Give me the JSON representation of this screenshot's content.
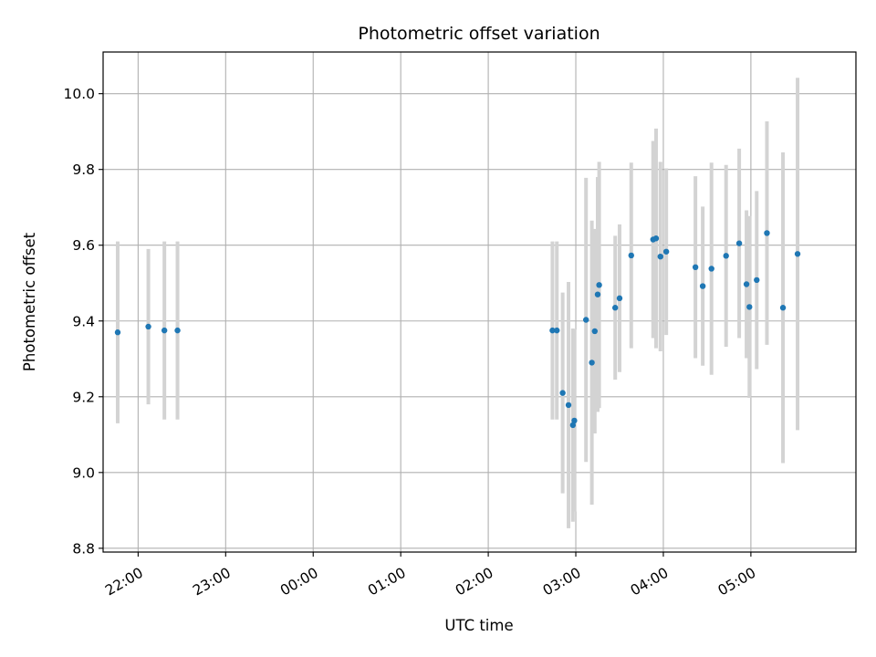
{
  "chart_data": {
    "type": "scatter",
    "title": "Photometric offset variation",
    "xlabel": "UTC time",
    "ylabel": "Photometric offset",
    "x_unit": "UTC",
    "x_tick_labels": [
      "22:00",
      "23:00",
      "00:00",
      "01:00",
      "02:00",
      "03:00",
      "04:00",
      "05:00"
    ],
    "x_tick_times": [
      "22:00",
      "23:00",
      "00:00",
      "01:00",
      "02:00",
      "03:00",
      "04:00",
      "05:00"
    ],
    "x_range": [
      "21:36",
      "06:12"
    ],
    "y_tick_labels": [
      "8.8",
      "9.0",
      "9.2",
      "9.4",
      "9.6",
      "9.8",
      "10.0"
    ],
    "y_ticks": [
      8.8,
      9.0,
      9.2,
      9.4,
      9.6,
      9.8,
      10.0
    ],
    "ylim": [
      8.79,
      10.11
    ],
    "grid": true,
    "legend": "none",
    "point_color": "#1f77b4",
    "errorbar_color": "#d3d3d3",
    "points": [
      {
        "time": "21:46",
        "y": 9.37,
        "err": 0.24
      },
      {
        "time": "22:07",
        "y": 9.385,
        "err": 0.205
      },
      {
        "time": "22:18",
        "y": 9.375,
        "err": 0.235
      },
      {
        "time": "22:27",
        "y": 9.375,
        "err": 0.235
      },
      {
        "time": "02:44",
        "y": 9.375,
        "err": 0.235
      },
      {
        "time": "02:47",
        "y": 9.375,
        "err": 0.235
      },
      {
        "time": "02:51",
        "y": 9.21,
        "err": 0.265
      },
      {
        "time": "02:55",
        "y": 9.178,
        "err": 0.325
      },
      {
        "time": "02:58",
        "y": 9.125,
        "err": 0.255
      },
      {
        "time": "02:59",
        "y": 9.137,
        "err": 0.24
      },
      {
        "time": "03:07",
        "y": 9.403,
        "err": 0.375
      },
      {
        "time": "03:11",
        "y": 9.29,
        "err": 0.375
      },
      {
        "time": "03:13",
        "y": 9.373,
        "err": 0.27
      },
      {
        "time": "03:15",
        "y": 9.47,
        "err": 0.31
      },
      {
        "time": "03:16",
        "y": 9.495,
        "err": 0.325
      },
      {
        "time": "03:27",
        "y": 9.435,
        "err": 0.19
      },
      {
        "time": "03:30",
        "y": 9.46,
        "err": 0.195
      },
      {
        "time": "03:38",
        "y": 9.573,
        "err": 0.245
      },
      {
        "time": "03:53",
        "y": 9.615,
        "err": 0.26
      },
      {
        "time": "03:55",
        "y": 9.618,
        "err": 0.29
      },
      {
        "time": "03:58",
        "y": 9.57,
        "err": 0.25
      },
      {
        "time": "04:02",
        "y": 9.583,
        "err": 0.22
      },
      {
        "time": "04:22",
        "y": 9.542,
        "err": 0.24
      },
      {
        "time": "04:27",
        "y": 9.492,
        "err": 0.21
      },
      {
        "time": "04:33",
        "y": 9.538,
        "err": 0.28
      },
      {
        "time": "04:43",
        "y": 9.572,
        "err": 0.24
      },
      {
        "time": "04:52",
        "y": 9.605,
        "err": 0.25
      },
      {
        "time": "04:57",
        "y": 9.497,
        "err": 0.195
      },
      {
        "time": "04:59",
        "y": 9.437,
        "err": 0.24
      },
      {
        "time": "05:04",
        "y": 9.508,
        "err": 0.235
      },
      {
        "time": "05:11",
        "y": 9.632,
        "err": 0.295
      },
      {
        "time": "05:22",
        "y": 9.435,
        "err": 0.41
      },
      {
        "time": "05:32",
        "y": 9.577,
        "err": 0.465
      }
    ]
  }
}
